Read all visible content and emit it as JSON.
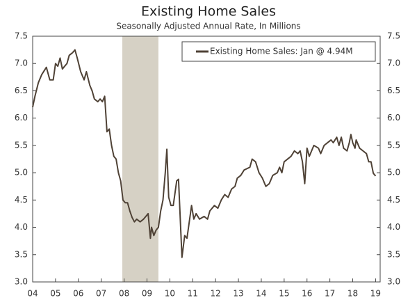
{
  "chart_data": {
    "type": "line",
    "title": "Existing Home Sales",
    "subtitle": "Seasonally Adjusted Annual Rate, In Millions",
    "x": [
      2004.0,
      2004.1,
      2004.25,
      2004.4,
      2004.6,
      2004.75,
      2004.9,
      2005.0,
      2005.1,
      2005.2,
      2005.3,
      2005.5,
      2005.6,
      2005.75,
      2005.85,
      2005.95,
      2006.1,
      2006.25,
      2006.35,
      2006.5,
      2006.6,
      2006.7,
      2006.85,
      2006.95,
      2007.05,
      2007.15,
      2007.25,
      2007.35,
      2007.45,
      2007.55,
      2007.65,
      2007.75,
      2007.85,
      2007.95,
      2008.05,
      2008.15,
      2008.25,
      2008.35,
      2008.45,
      2008.55,
      2008.7,
      2008.85,
      2008.95,
      2009.05,
      2009.15,
      2009.2,
      2009.3,
      2009.4,
      2009.5,
      2009.6,
      2009.7,
      2009.8,
      2009.87,
      2009.95,
      2010.05,
      2010.15,
      2010.3,
      2010.38,
      2010.53,
      2010.65,
      2010.75,
      2010.85,
      2010.95,
      2011.05,
      2011.15,
      2011.3,
      2011.5,
      2011.65,
      2011.75,
      2011.95,
      2012.1,
      2012.25,
      2012.4,
      2012.55,
      2012.7,
      2012.85,
      2012.95,
      2013.1,
      2013.25,
      2013.5,
      2013.6,
      2013.75,
      2013.9,
      2014.05,
      2014.2,
      2014.35,
      2014.5,
      2014.7,
      2014.8,
      2014.9,
      2015.0,
      2015.3,
      2015.45,
      2015.6,
      2015.7,
      2015.8,
      2015.9,
      2016.0,
      2016.1,
      2016.3,
      2016.5,
      2016.6,
      2016.75,
      2016.9,
      2017.05,
      2017.15,
      2017.3,
      2017.4,
      2017.5,
      2017.6,
      2017.75,
      2017.85,
      2017.92,
      2018.0,
      2018.1,
      2018.15,
      2018.3,
      2018.45,
      2018.6,
      2018.7,
      2018.8,
      2018.9,
      2019.0
    ],
    "series": [
      {
        "name": "Existing Home Sales: Jan @ 4.94M",
        "color": "#4f4236",
        "values": [
          6.2,
          6.4,
          6.65,
          6.8,
          6.93,
          6.7,
          6.7,
          7.0,
          6.95,
          7.1,
          6.9,
          7.0,
          7.15,
          7.2,
          7.25,
          7.1,
          6.85,
          6.7,
          6.85,
          6.6,
          6.5,
          6.35,
          6.3,
          6.35,
          6.3,
          6.4,
          5.75,
          5.8,
          5.5,
          5.3,
          5.25,
          5.0,
          4.85,
          4.5,
          4.45,
          4.45,
          4.3,
          4.18,
          4.1,
          4.15,
          4.1,
          4.15,
          4.2,
          4.25,
          3.8,
          4.0,
          3.85,
          3.95,
          4.0,
          4.3,
          4.5,
          5.0,
          5.43,
          4.55,
          4.4,
          4.4,
          4.85,
          4.88,
          3.45,
          3.85,
          3.8,
          4.1,
          4.4,
          4.15,
          4.25,
          4.15,
          4.2,
          4.15,
          4.3,
          4.4,
          4.35,
          4.5,
          4.6,
          4.55,
          4.7,
          4.75,
          4.9,
          4.95,
          5.05,
          5.1,
          5.25,
          5.2,
          5.0,
          4.9,
          4.75,
          4.8,
          4.95,
          5.0,
          5.1,
          5.0,
          5.2,
          5.3,
          5.4,
          5.35,
          5.4,
          5.2,
          4.8,
          5.45,
          5.3,
          5.5,
          5.45,
          5.35,
          5.5,
          5.55,
          5.6,
          5.55,
          5.65,
          5.5,
          5.65,
          5.45,
          5.4,
          5.55,
          5.7,
          5.55,
          5.45,
          5.6,
          5.45,
          5.4,
          5.35,
          5.2,
          5.2,
          4.99,
          4.94
        ]
      }
    ],
    "shaded_regions": [
      [
        2007.92,
        2009.5
      ]
    ],
    "shade_color": "#d6d1c5",
    "xlim": [
      2004,
      2019.2
    ],
    "xticks": [
      {
        "value": 2004,
        "label": "04"
      },
      {
        "value": 2005,
        "label": "05"
      },
      {
        "value": 2006,
        "label": "06"
      },
      {
        "value": 2007,
        "label": "07"
      },
      {
        "value": 2008,
        "label": "08"
      },
      {
        "value": 2009,
        "label": "09"
      },
      {
        "value": 2010,
        "label": "10"
      },
      {
        "value": 2011,
        "label": "11"
      },
      {
        "value": 2012,
        "label": "12"
      },
      {
        "value": 2013,
        "label": "13"
      },
      {
        "value": 2014,
        "label": "14"
      },
      {
        "value": 2015,
        "label": "15"
      },
      {
        "value": 2016,
        "label": "16"
      },
      {
        "value": 2017,
        "label": "17"
      },
      {
        "value": 2018,
        "label": "18"
      },
      {
        "value": 2019,
        "label": "19"
      }
    ],
    "ylim": [
      3.0,
      7.5
    ],
    "yticks": [
      {
        "value": 3,
        "label": "3.0"
      },
      3.5,
      {
        "value": 4,
        "label": "4.0"
      },
      4.5,
      {
        "value": 5,
        "label": "5.0"
      },
      5.5,
      {
        "value": 6,
        "label": "6.0"
      },
      6.5,
      {
        "value": 7,
        "label": "7.0"
      },
      7.5
    ],
    "legend": "top-right"
  }
}
